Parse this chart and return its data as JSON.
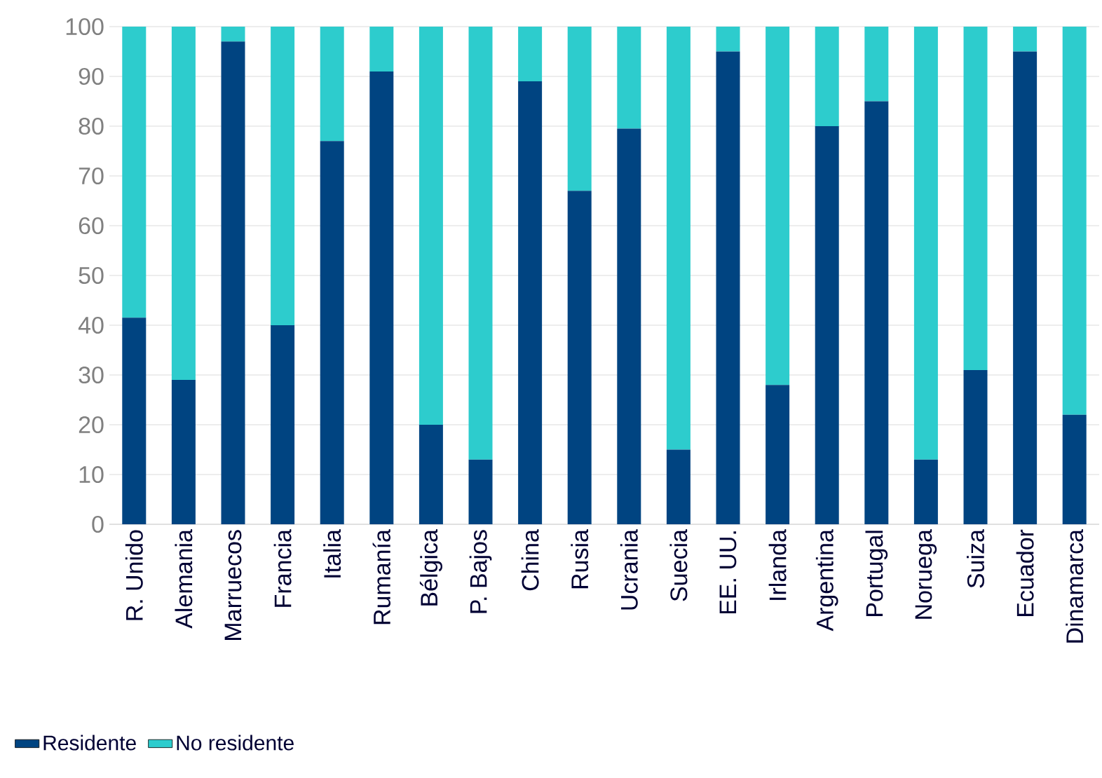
{
  "chart_data": {
    "type": "bar",
    "stacked": true,
    "categories": [
      "R. Unido",
      "Alemania",
      "Marruecos",
      "Francia",
      "Italia",
      "Rumanía",
      "Bélgica",
      "P. Bajos",
      "China",
      "Rusia",
      "Ucrania",
      "Suecia",
      "EE. UU.",
      "Irlanda",
      "Argentina",
      "Portugal",
      "Noruega",
      "Suiza",
      "Ecuador",
      "Dinamarca"
    ],
    "series": [
      {
        "name": "Residente",
        "color": "#004481",
        "values": [
          41.5,
          29,
          97,
          40,
          77,
          91,
          20,
          13,
          89,
          67,
          79.5,
          15,
          95,
          28,
          80,
          85,
          13,
          31,
          95,
          22
        ]
      },
      {
        "name": "No residente",
        "color": "#2dcccd",
        "values": [
          58.5,
          71,
          3,
          60,
          23,
          9,
          80,
          87,
          11,
          33,
          20.5,
          85,
          5,
          72,
          20,
          15,
          87,
          69,
          5,
          78
        ]
      }
    ],
    "ylim": [
      0,
      100
    ],
    "yticks": [
      0,
      10,
      20,
      30,
      40,
      50,
      60,
      70,
      80,
      90,
      100
    ],
    "grid": "y",
    "legend": "bottom left"
  }
}
